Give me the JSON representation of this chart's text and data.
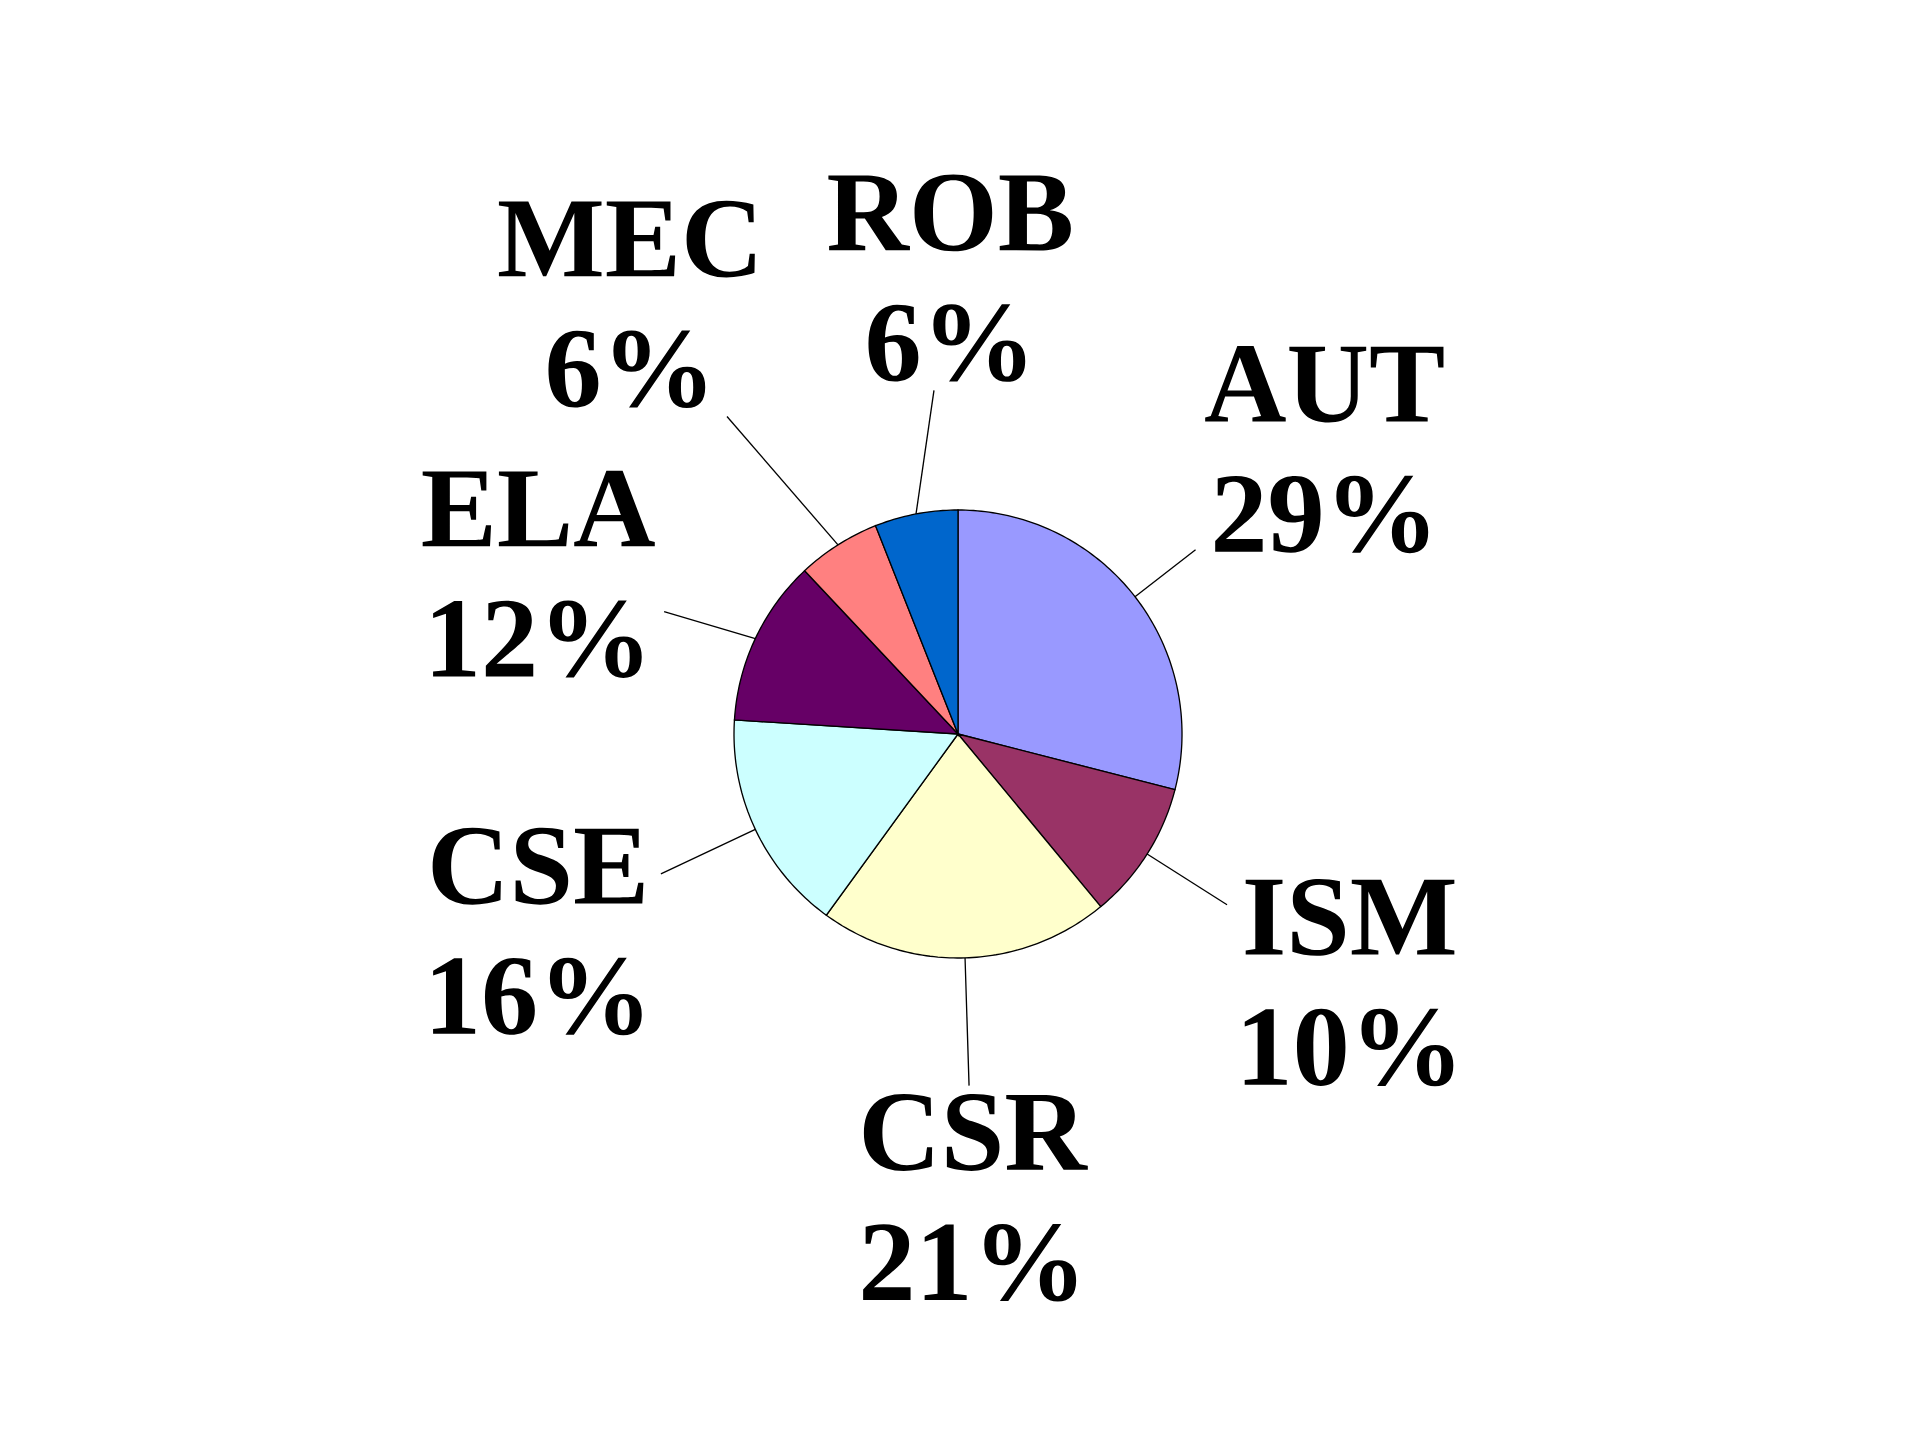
{
  "chart_data": {
    "type": "pie",
    "categories": [
      "AUT",
      "ISM",
      "CSR",
      "CSE",
      "ELA",
      "MEC",
      "ROB"
    ],
    "values": [
      29,
      10,
      21,
      16,
      12,
      6,
      6
    ],
    "value_labels": [
      "29%",
      "10%",
      "21%",
      "16%",
      "12%",
      "6%",
      "6%"
    ],
    "colors": [
      "#9999ff",
      "#993366",
      "#ffffcc",
      "#ccffff",
      "#660066",
      "#ff8080",
      "#0066cc"
    ]
  }
}
